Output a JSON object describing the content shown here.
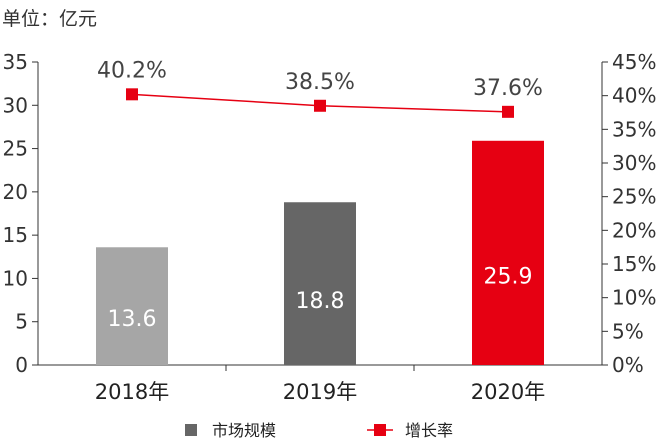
{
  "unit_label": "单位：亿元",
  "legend": {
    "bar_label": "市场规模",
    "line_label": "增长率"
  },
  "chart_data": {
    "type": "bar",
    "categories": [
      "2018年",
      "2019年",
      "2020年"
    ],
    "series": [
      {
        "name": "市场规模",
        "type": "bar",
        "axis": "left",
        "values": [
          13.6,
          18.8,
          25.9
        ],
        "data_labels": [
          "13.6",
          "18.8",
          "25.9"
        ],
        "colors": [
          "#a6a6a6",
          "#666666",
          "#e60012"
        ]
      },
      {
        "name": "增长率",
        "type": "line",
        "axis": "right",
        "values": [
          40.2,
          38.5,
          37.6
        ],
        "data_labels": [
          "40.2%",
          "38.5%",
          "37.6%"
        ],
        "color": "#e60012"
      }
    ],
    "y_left": {
      "ylim": [
        0,
        35
      ],
      "ticks": [
        "0",
        "5",
        "10",
        "15",
        "20",
        "25",
        "30",
        "35"
      ]
    },
    "y_right": {
      "ylim": [
        0,
        45
      ],
      "ticks": [
        "0%",
        "5%",
        "10%",
        "15%",
        "20%",
        "25%",
        "30%",
        "35%",
        "40%",
        "45%"
      ]
    },
    "grid": false,
    "legend_position": "bottom"
  }
}
